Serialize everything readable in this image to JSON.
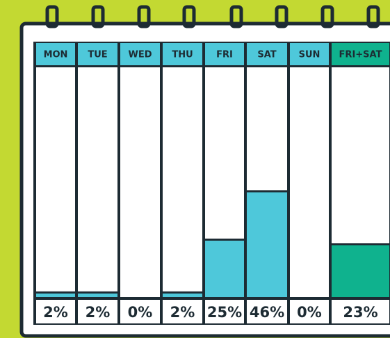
{
  "chart_data": {
    "type": "bar",
    "categories": [
      "MON",
      "TUE",
      "WED",
      "THU",
      "FRI",
      "SAT",
      "SUN",
      "FRI+SAT"
    ],
    "values": [
      2,
      2,
      0,
      2,
      25,
      46,
      0,
      23
    ],
    "value_labels": [
      "2%",
      "2%",
      "0%",
      "2%",
      "25%",
      "46%",
      "0%",
      "23%"
    ],
    "colors": [
      "#4ec8da",
      "#4ec8da",
      "#4ec8da",
      "#4ec8da",
      "#4ec8da",
      "#4ec8da",
      "#4ec8da",
      "#0fb28e"
    ],
    "ylim": [
      0,
      100
    ]
  }
}
